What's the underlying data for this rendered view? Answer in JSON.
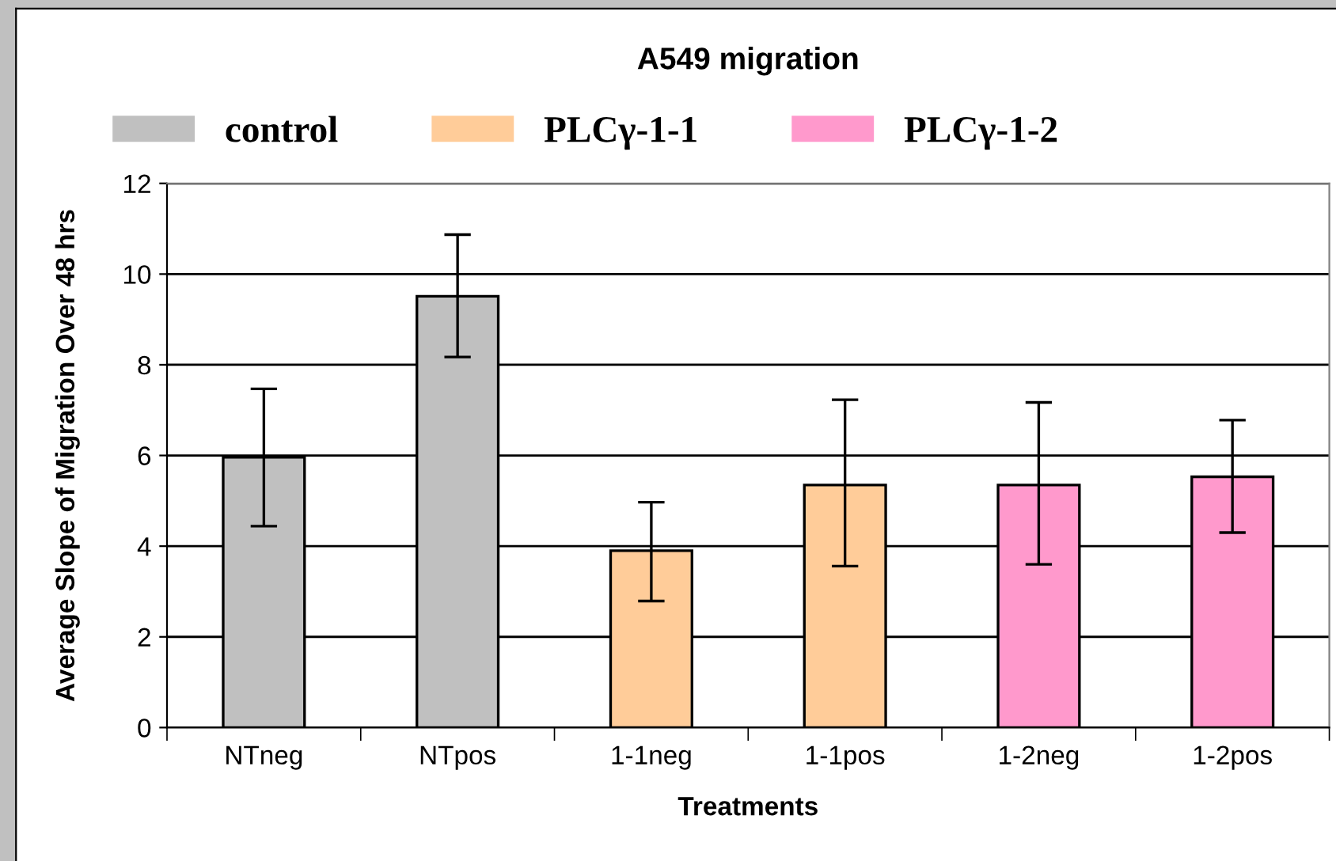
{
  "chart_data": {
    "type": "bar",
    "title": "A549 migration",
    "xlabel": "Treatments",
    "ylabel": "Average Slope of Migration Over 48 hrs",
    "categories": [
      "NTneg",
      "NTpos",
      "1-1neg",
      "1-1pos",
      "1-2neg",
      "1-2pos"
    ],
    "series": [
      {
        "name": "control",
        "color": "#c0c0c0",
        "values": [
          5.96,
          9.51,
          null,
          null,
          null,
          null
        ],
        "errors": [
          [
            4.44,
            7.47
          ],
          [
            8.17,
            10.87
          ],
          null,
          null,
          null,
          null
        ]
      },
      {
        "name": "PLCγ-1-1",
        "color": "#ffcc99",
        "values": [
          null,
          null,
          3.9,
          5.35,
          null,
          null
        ],
        "errors": [
          null,
          null,
          [
            2.79,
            4.97
          ],
          [
            3.56,
            7.23
          ],
          null,
          null
        ]
      },
      {
        "name": "PLCγ-1-2",
        "color": "#ff99cc",
        "values": [
          null,
          null,
          null,
          null,
          5.35,
          5.53
        ],
        "errors": [
          null,
          null,
          null,
          null,
          [
            3.6,
            7.17
          ],
          [
            4.3,
            6.78
          ]
        ]
      }
    ],
    "ylim": [
      0,
      12
    ],
    "yticks": [
      0,
      2,
      4,
      6,
      8,
      10,
      12
    ],
    "grid": "y",
    "legend": "top"
  }
}
